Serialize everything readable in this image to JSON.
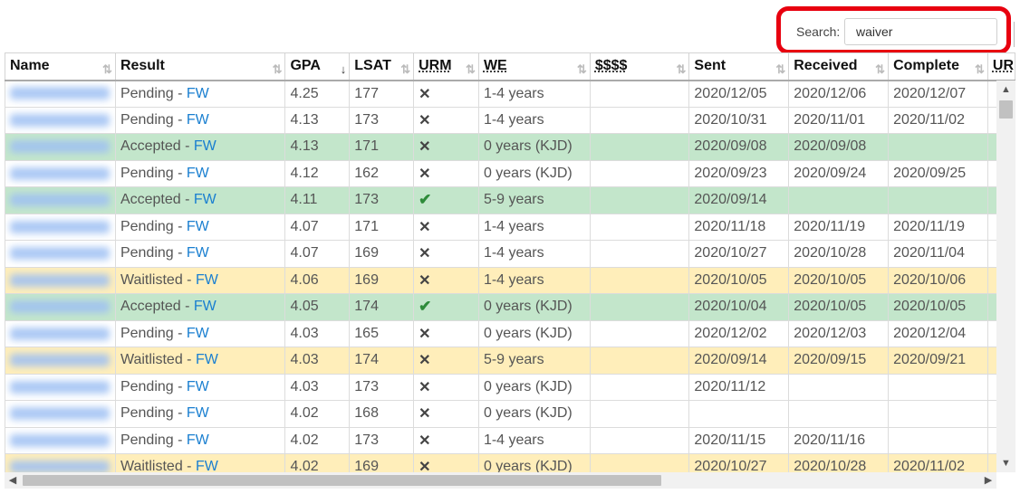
{
  "search": {
    "label": "Search:",
    "value": "waiver"
  },
  "columns": [
    {
      "label": "Name",
      "sorted": false,
      "dotted": false
    },
    {
      "label": "Result",
      "sorted": false,
      "dotted": false
    },
    {
      "label": "GPA",
      "sorted": true,
      "dotted": false
    },
    {
      "label": "LSAT",
      "sorted": false,
      "dotted": false
    },
    {
      "label": "URM",
      "sorted": false,
      "dotted": true
    },
    {
      "label": "WE",
      "sorted": false,
      "dotted": true
    },
    {
      "label": "$$$$",
      "sorted": false,
      "dotted": true
    },
    {
      "label": "Sent",
      "sorted": false,
      "dotted": false
    },
    {
      "label": "Received",
      "sorted": false,
      "dotted": false
    },
    {
      "label": "Complete",
      "sorted": false,
      "dotted": false
    },
    {
      "label": "UR",
      "sorted": false,
      "dotted": true
    }
  ],
  "icons": {
    "sort_both": "⇅",
    "sort_desc": "↓",
    "x": "✕",
    "check": "✔",
    "scroll_up": "▲",
    "scroll_down": "▼",
    "scroll_left": "◀",
    "scroll_right": "▶"
  },
  "colors": {
    "accepted": "#c3e6cb",
    "waitlisted": "#ffeeba",
    "pending": "#ffffff",
    "link": "#1a7fd0",
    "highlight": "#e8000f"
  },
  "rows": [
    {
      "status": "pending",
      "result": "Pending",
      "fw": "FW",
      "gpa": "4.25",
      "lsat": "177",
      "urm": false,
      "we": "1-4 years",
      "money": "",
      "sent": "2020/12/05",
      "received": "2020/12/06",
      "complete": "2020/12/07"
    },
    {
      "status": "pending",
      "result": "Pending",
      "fw": "FW",
      "gpa": "4.13",
      "lsat": "173",
      "urm": false,
      "we": "1-4 years",
      "money": "",
      "sent": "2020/10/31",
      "received": "2020/11/01",
      "complete": "2020/11/02"
    },
    {
      "status": "accepted",
      "result": "Accepted",
      "fw": "FW",
      "gpa": "4.13",
      "lsat": "171",
      "urm": false,
      "we": "0 years (KJD)",
      "money": "",
      "sent": "2020/09/08",
      "received": "2020/09/08",
      "complete": ""
    },
    {
      "status": "pending",
      "result": "Pending",
      "fw": "FW",
      "gpa": "4.12",
      "lsat": "162",
      "urm": false,
      "we": "0 years (KJD)",
      "money": "",
      "sent": "2020/09/23",
      "received": "2020/09/24",
      "complete": "2020/09/25"
    },
    {
      "status": "accepted",
      "result": "Accepted",
      "fw": "FW",
      "gpa": "4.11",
      "lsat": "173",
      "urm": true,
      "we": "5-9 years",
      "money": "",
      "sent": "2020/09/14",
      "received": "",
      "complete": ""
    },
    {
      "status": "pending",
      "result": "Pending",
      "fw": "FW",
      "gpa": "4.07",
      "lsat": "171",
      "urm": false,
      "we": "1-4 years",
      "money": "",
      "sent": "2020/11/18",
      "received": "2020/11/19",
      "complete": "2020/11/19"
    },
    {
      "status": "pending",
      "result": "Pending",
      "fw": "FW",
      "gpa": "4.07",
      "lsat": "169",
      "urm": false,
      "we": "1-4 years",
      "money": "",
      "sent": "2020/10/27",
      "received": "2020/10/28",
      "complete": "2020/11/04"
    },
    {
      "status": "waitlisted",
      "result": "Waitlisted",
      "fw": "FW",
      "gpa": "4.06",
      "lsat": "169",
      "urm": false,
      "we": "1-4 years",
      "money": "",
      "sent": "2020/10/05",
      "received": "2020/10/05",
      "complete": "2020/10/06"
    },
    {
      "status": "accepted",
      "result": "Accepted",
      "fw": "FW",
      "gpa": "4.05",
      "lsat": "174",
      "urm": true,
      "we": "0 years (KJD)",
      "money": "",
      "sent": "2020/10/04",
      "received": "2020/10/05",
      "complete": "2020/10/05"
    },
    {
      "status": "pending",
      "result": "Pending",
      "fw": "FW",
      "gpa": "4.03",
      "lsat": "165",
      "urm": false,
      "we": "0 years (KJD)",
      "money": "",
      "sent": "2020/12/02",
      "received": "2020/12/03",
      "complete": "2020/12/04"
    },
    {
      "status": "waitlisted",
      "result": "Waitlisted",
      "fw": "FW",
      "gpa": "4.03",
      "lsat": "174",
      "urm": false,
      "we": "5-9 years",
      "money": "",
      "sent": "2020/09/14",
      "received": "2020/09/15",
      "complete": "2020/09/21"
    },
    {
      "status": "pending",
      "result": "Pending",
      "fw": "FW",
      "gpa": "4.03",
      "lsat": "173",
      "urm": false,
      "we": "0 years (KJD)",
      "money": "",
      "sent": "2020/11/12",
      "received": "",
      "complete": ""
    },
    {
      "status": "pending",
      "result": "Pending",
      "fw": "FW",
      "gpa": "4.02",
      "lsat": "168",
      "urm": false,
      "we": "0 years (KJD)",
      "money": "",
      "sent": "",
      "received": "",
      "complete": ""
    },
    {
      "status": "pending",
      "result": "Pending",
      "fw": "FW",
      "gpa": "4.02",
      "lsat": "173",
      "urm": false,
      "we": "1-4 years",
      "money": "",
      "sent": "2020/11/15",
      "received": "2020/11/16",
      "complete": ""
    },
    {
      "status": "waitlisted",
      "result": "Waitlisted",
      "fw": "FW",
      "gpa": "4.02",
      "lsat": "169",
      "urm": false,
      "we": "0 years (KJD)",
      "money": "",
      "sent": "2020/10/27",
      "received": "2020/10/28",
      "complete": "2020/11/02"
    }
  ]
}
